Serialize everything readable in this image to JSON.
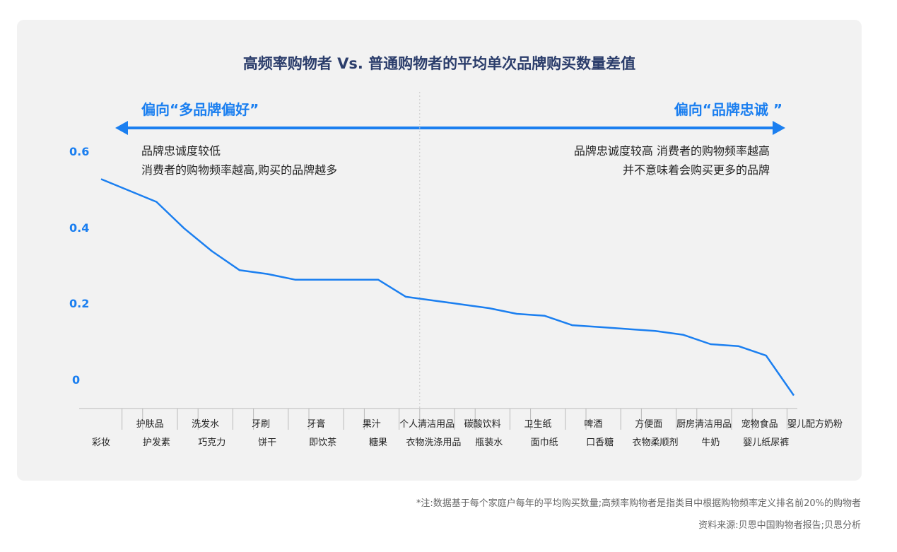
{
  "chart_data": {
    "type": "line",
    "title": "高频率购物者 Vs. 普通购物者的平均单次品牌购买数量差值",
    "left_direction": "偏向“多品牌偏好”",
    "right_direction": "偏向“品牌忠诚 ”",
    "left_note": [
      "品牌忠诚度较低",
      "消费者的购物频率越高,购买的品牌越多"
    ],
    "right_note": [
      "品牌忠诚度较高 消费者的购物频率越高",
      "并不意味着会购买更多的品牌"
    ],
    "yticks": [
      "0.6",
      "0.4",
      "0.2",
      "0"
    ],
    "ylim": [
      -0.04,
      0.6
    ],
    "grid": false,
    "divider_between": [
      "个人清洁用品",
      "碳酸饮料"
    ],
    "categories": [
      {
        "label": "彩妆",
        "row": 2
      },
      {
        "label": "护肤品",
        "row": 1
      },
      {
        "label": "护发素",
        "row": 2
      },
      {
        "label": "洗发水",
        "row": 1
      },
      {
        "label": "巧克力",
        "row": 2
      },
      {
        "label": "牙刷",
        "row": 1
      },
      {
        "label": "饼干",
        "row": 2
      },
      {
        "label": "牙膏",
        "row": 1
      },
      {
        "label": "即饮茶",
        "row": 2
      },
      {
        "label": "果汁",
        "row": 1
      },
      {
        "label": "糖果",
        "row": 2
      },
      {
        "label": "个人清洁用品",
        "row": 1
      },
      {
        "label": "衣物洗涤用品",
        "row": 2
      },
      {
        "label": "碳酸饮料",
        "row": 1
      },
      {
        "label": "瓶装水",
        "row": 2
      },
      {
        "label": "卫生纸",
        "row": 1
      },
      {
        "label": "面巾纸",
        "row": 2
      },
      {
        "label": "啤酒",
        "row": 1
      },
      {
        "label": "口香糖",
        "row": 2
      },
      {
        "label": "方便面",
        "row": 1
      },
      {
        "label": "衣物柔顺剂",
        "row": 2
      },
      {
        "label": "厨房清洁用品",
        "row": 1
      },
      {
        "label": "牛奶",
        "row": 2
      },
      {
        "label": "宠物食品",
        "row": 1
      },
      {
        "label": "婴儿纸尿裤",
        "row": 2
      },
      {
        "label": "婴儿配方奶粉",
        "row": 1
      }
    ],
    "series": [
      {
        "values": [
          0.53,
          0.5,
          0.47,
          0.4,
          0.34,
          0.29,
          0.28,
          0.265,
          0.265,
          0.265,
          0.265,
          0.22,
          0.21,
          0.2,
          0.19,
          0.175,
          0.17,
          0.145,
          0.14,
          0.135,
          0.13,
          0.12,
          0.095,
          0.09,
          0.065,
          -0.04
        ],
        "color": "#1b7ff0"
      }
    ]
  },
  "footer": {
    "note": "*注:数据基于每个家庭户每年的平均购买数量;高频率购物者是指类目中根据购物频率定义排名前20%的购物者",
    "source": "资料来源:贝恩中国购物者报告;贝恩分析"
  }
}
